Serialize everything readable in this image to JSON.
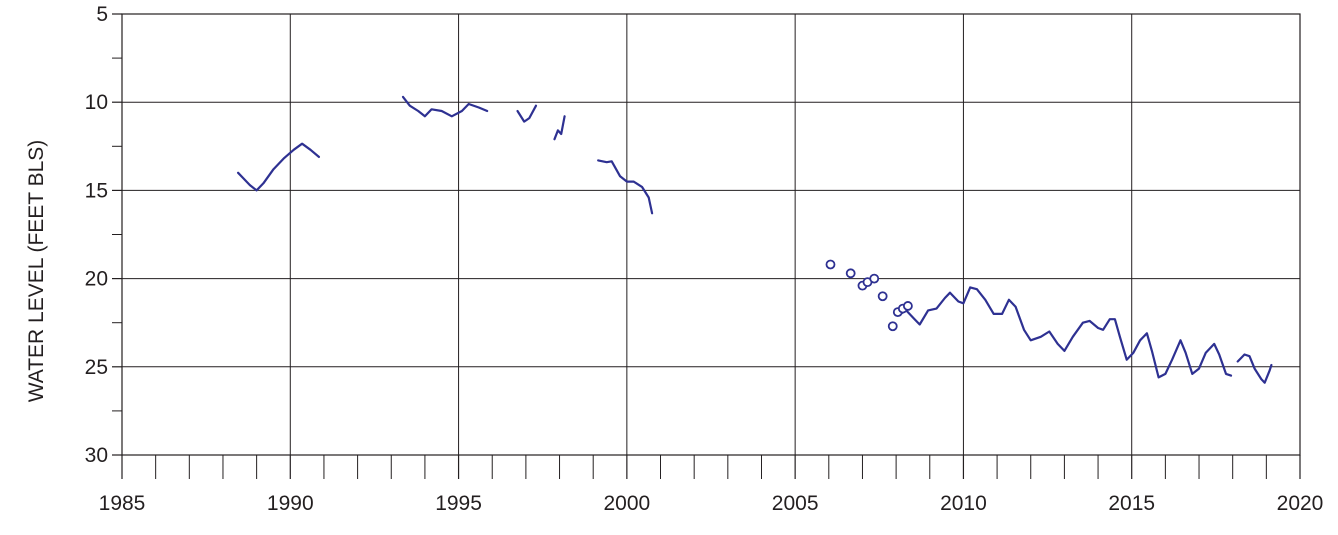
{
  "chart_data": {
    "type": "line",
    "title": "",
    "xlabel": "",
    "ylabel": "WATER LEVEL (FEET BLS)",
    "xlim": [
      1985,
      2020
    ],
    "ylim": [
      30,
      5
    ],
    "y_inverted": true,
    "x_ticks": [
      "1985",
      "1990",
      "1995",
      "2000",
      "2005",
      "2010",
      "2015",
      "2020"
    ],
    "y_ticks": [
      "5",
      "10",
      "15",
      "20",
      "25",
      "30"
    ],
    "grid": true,
    "legend": "none",
    "colors": {
      "series": "#2e3192",
      "axis": "#231f20"
    },
    "series": [
      {
        "style": "line",
        "segments": [
          [
            [
              1988.45,
              14.0
            ],
            [
              1988.6,
              14.3
            ],
            [
              1988.8,
              14.7
            ],
            [
              1989.0,
              15.0
            ],
            [
              1989.2,
              14.6
            ],
            [
              1989.5,
              13.8
            ],
            [
              1989.8,
              13.2
            ],
            [
              1990.1,
              12.7
            ],
            [
              1990.35,
              12.35
            ],
            [
              1990.6,
              12.7
            ],
            [
              1990.85,
              13.1
            ]
          ],
          [
            [
              1993.35,
              9.7
            ],
            [
              1993.55,
              10.2
            ],
            [
              1993.8,
              10.5
            ],
            [
              1994.0,
              10.8
            ],
            [
              1994.2,
              10.4
            ],
            [
              1994.5,
              10.5
            ],
            [
              1994.8,
              10.8
            ],
            [
              1995.1,
              10.5
            ],
            [
              1995.3,
              10.1
            ],
            [
              1995.6,
              10.3
            ],
            [
              1995.85,
              10.5
            ]
          ],
          [
            [
              1996.75,
              10.5
            ],
            [
              1996.95,
              11.1
            ],
            [
              1997.1,
              10.9
            ],
            [
              1997.3,
              10.2
            ]
          ],
          [
            [
              1997.85,
              12.1
            ],
            [
              1997.95,
              11.6
            ],
            [
              1998.05,
              11.8
            ],
            [
              1998.15,
              10.8
            ]
          ],
          [
            [
              1999.15,
              13.3
            ],
            [
              1999.4,
              13.4
            ],
            [
              1999.55,
              13.35
            ],
            [
              1999.8,
              14.2
            ],
            [
              2000.0,
              14.5
            ],
            [
              2000.2,
              14.5
            ],
            [
              2000.45,
              14.8
            ],
            [
              2000.65,
              15.4
            ],
            [
              2000.75,
              16.3
            ]
          ],
          [
            [
              2008.05,
              22.1
            ],
            [
              2008.3,
              21.8
            ],
            [
              2008.55,
              22.3
            ],
            [
              2008.7,
              22.6
            ],
            [
              2008.95,
              21.8
            ],
            [
              2009.2,
              21.7
            ],
            [
              2009.45,
              21.1
            ],
            [
              2009.6,
              20.8
            ],
            [
              2009.85,
              21.3
            ],
            [
              2010.0,
              21.4
            ],
            [
              2010.2,
              20.5
            ],
            [
              2010.4,
              20.6
            ],
            [
              2010.65,
              21.2
            ],
            [
              2010.9,
              22.0
            ],
            [
              2011.15,
              22.0
            ],
            [
              2011.35,
              21.2
            ],
            [
              2011.55,
              21.6
            ],
            [
              2011.8,
              22.9
            ],
            [
              2012.0,
              23.5
            ],
            [
              2012.3,
              23.3
            ],
            [
              2012.55,
              23.0
            ],
            [
              2012.8,
              23.7
            ],
            [
              2013.0,
              24.1
            ],
            [
              2013.25,
              23.3
            ],
            [
              2013.55,
              22.5
            ],
            [
              2013.75,
              22.4
            ],
            [
              2014.0,
              22.8
            ],
            [
              2014.15,
              22.9
            ],
            [
              2014.35,
              22.3
            ],
            [
              2014.5,
              22.3
            ],
            [
              2014.65,
              23.3
            ],
            [
              2014.85,
              24.6
            ],
            [
              2015.05,
              24.2
            ],
            [
              2015.25,
              23.5
            ],
            [
              2015.45,
              23.1
            ],
            [
              2015.6,
              24.1
            ],
            [
              2015.8,
              25.6
            ],
            [
              2016.0,
              25.4
            ],
            [
              2016.2,
              24.6
            ],
            [
              2016.45,
              23.5
            ],
            [
              2016.6,
              24.2
            ],
            [
              2016.8,
              25.4
            ],
            [
              2017.0,
              25.1
            ],
            [
              2017.2,
              24.2
            ],
            [
              2017.45,
              23.7
            ],
            [
              2017.6,
              24.3
            ],
            [
              2017.8,
              25.4
            ],
            [
              2017.95,
              25.5
            ]
          ],
          [
            [
              2018.15,
              24.7
            ],
            [
              2018.35,
              24.3
            ],
            [
              2018.5,
              24.4
            ],
            [
              2018.65,
              25.1
            ],
            [
              2018.85,
              25.7
            ],
            [
              2018.95,
              25.9
            ],
            [
              2019.1,
              25.2
            ],
            [
              2019.15,
              24.9
            ]
          ]
        ]
      },
      {
        "style": "markers",
        "marker": "open-circle",
        "points": [
          [
            2006.05,
            19.2
          ],
          [
            2006.65,
            19.7
          ],
          [
            2007.0,
            20.4
          ],
          [
            2007.15,
            20.2
          ],
          [
            2007.35,
            20.0
          ],
          [
            2007.6,
            21.0
          ],
          [
            2007.9,
            22.7
          ],
          [
            2008.05,
            21.9
          ],
          [
            2008.2,
            21.7
          ],
          [
            2008.35,
            21.55
          ]
        ]
      }
    ]
  }
}
